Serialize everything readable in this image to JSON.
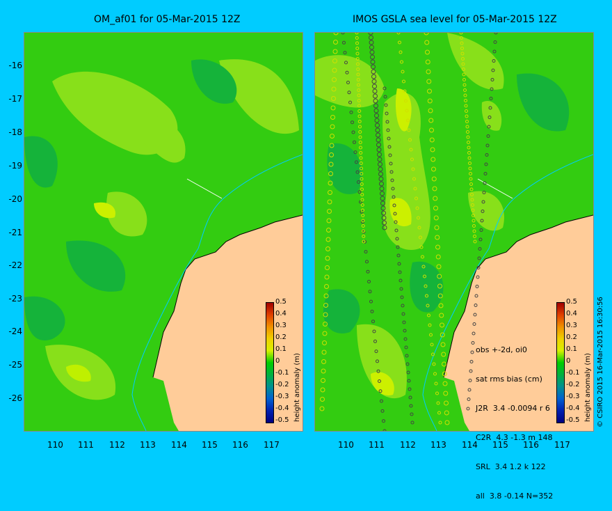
{
  "left_panel": {
    "title": "OM_af01 for 05-Mar-2015 12Z"
  },
  "right_panel": {
    "title": "IMOS GSLA sea level  for 05-Mar-2015 12Z"
  },
  "y_axis": [
    "-16",
    "-17",
    "-18",
    "-19",
    "-20",
    "-21",
    "-22",
    "-23",
    "-24",
    "-25",
    "-26"
  ],
  "x_axis": [
    "110",
    "111",
    "112",
    "113",
    "114",
    "115",
    "116",
    "117"
  ],
  "colorbar": {
    "ticks": [
      "0.5",
      "0.4",
      "0.3",
      "0.2",
      "0.1",
      "0",
      "-0.1",
      "-0.2",
      "-0.3",
      "-0.4",
      "-0.5"
    ],
    "title": "height anomaly (m)",
    "colors": [
      "#a00000",
      "#e04000",
      "#f09000",
      "#f0d000",
      "#d8f000",
      "#00cc00",
      "#00b040",
      "#009090",
      "#0060d0",
      "#0020b0",
      "#000080"
    ]
  },
  "stats": {
    "line1": "obs +-2d, oi0",
    "line2": "sat rms bias (cm)",
    "rows": [
      "J2R  3.4 -0.0094 r 6",
      "C2R  4.3 -1.3 m 148",
      "SRL  3.4 1.2 k 122",
      "all  3.8 -0.14 N=352"
    ]
  },
  "copyright": "© CSIRO 2015   16-Mar-2015 16:30:56",
  "colors": {
    "sea": "#33cc11",
    "land": "#ffcc99",
    "background": "#00ccff",
    "contour_light": "#88e01a",
    "contour_dark": "#15b33a"
  }
}
